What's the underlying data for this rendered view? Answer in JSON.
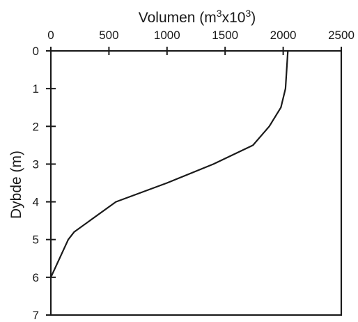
{
  "chart_data": {
    "type": "line",
    "xlabel": {
      "base": "Volumen (m",
      "exp1": "3",
      "mid": "x10",
      "exp2": "3",
      "tail": ")"
    },
    "ylabel": "Dybde (m)",
    "xlim": [
      0,
      2500
    ],
    "ylim": [
      0,
      7
    ],
    "x_ticks": [
      "0",
      "500",
      "1000",
      "1500",
      "2000",
      "2500"
    ],
    "y_ticks": [
      "0",
      "1",
      "2",
      "3",
      "4",
      "5",
      "6",
      "7"
    ],
    "x_axis_position": "top",
    "y_inverted": true,
    "grid": false,
    "series": [
      {
        "x": [
          2040,
          2020,
          1980,
          1880,
          1740,
          1400,
          1000,
          560,
          200,
          150,
          0
        ],
        "y": [
          0,
          1,
          1.5,
          2,
          2.5,
          3,
          3.5,
          4,
          4.8,
          5,
          6
        ],
        "color": "#1a1a1a"
      }
    ]
  }
}
